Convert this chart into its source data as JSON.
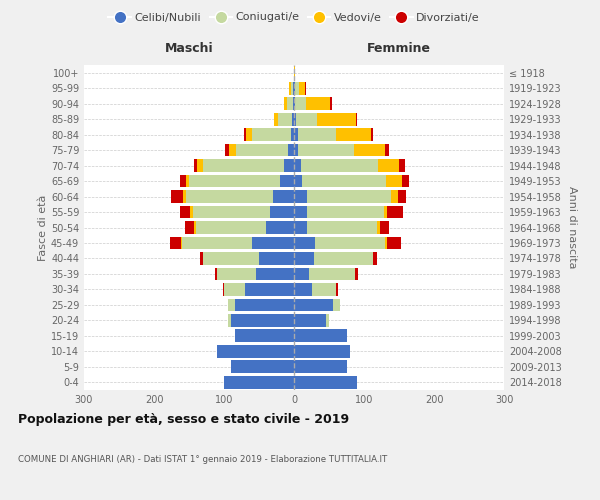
{
  "age_groups": [
    "0-4",
    "5-9",
    "10-14",
    "15-19",
    "20-24",
    "25-29",
    "30-34",
    "35-39",
    "40-44",
    "45-49",
    "50-54",
    "55-59",
    "60-64",
    "65-69",
    "70-74",
    "75-79",
    "80-84",
    "85-89",
    "90-94",
    "95-99",
    "100+"
  ],
  "birth_years": [
    "2014-2018",
    "2009-2013",
    "2004-2008",
    "1999-2003",
    "1994-1998",
    "1989-1993",
    "1984-1988",
    "1979-1983",
    "1974-1978",
    "1969-1973",
    "1964-1968",
    "1959-1963",
    "1954-1958",
    "1949-1953",
    "1944-1948",
    "1939-1943",
    "1934-1938",
    "1929-1933",
    "1924-1928",
    "1919-1923",
    "≤ 1918"
  ],
  "males": {
    "celibi": [
      100,
      90,
      110,
      85,
      90,
      85,
      70,
      55,
      50,
      60,
      40,
      35,
      30,
      20,
      15,
      8,
      5,
      3,
      2,
      2,
      0
    ],
    "coniugati": [
      0,
      0,
      0,
      0,
      5,
      10,
      30,
      55,
      80,
      100,
      100,
      110,
      125,
      130,
      115,
      75,
      55,
      20,
      8,
      3,
      0
    ],
    "vedovi": [
      0,
      0,
      0,
      0,
      0,
      0,
      0,
      0,
      0,
      2,
      3,
      3,
      3,
      5,
      8,
      10,
      8,
      5,
      5,
      2,
      0
    ],
    "divorziati": [
      0,
      0,
      0,
      0,
      0,
      0,
      2,
      3,
      5,
      15,
      12,
      15,
      18,
      8,
      5,
      5,
      3,
      0,
      0,
      0,
      0
    ]
  },
  "females": {
    "nubili": [
      90,
      75,
      80,
      75,
      45,
      55,
      25,
      22,
      28,
      30,
      18,
      18,
      18,
      12,
      10,
      5,
      5,
      3,
      2,
      2,
      0
    ],
    "coniugate": [
      0,
      0,
      0,
      0,
      5,
      10,
      35,
      65,
      85,
      100,
      100,
      110,
      120,
      120,
      110,
      80,
      55,
      30,
      15,
      5,
      0
    ],
    "vedove": [
      0,
      0,
      0,
      0,
      0,
      0,
      0,
      0,
      0,
      3,
      5,
      5,
      10,
      22,
      30,
      45,
      50,
      55,
      35,
      8,
      1
    ],
    "divorziate": [
      0,
      0,
      0,
      0,
      0,
      0,
      3,
      5,
      5,
      20,
      12,
      22,
      12,
      10,
      8,
      5,
      3,
      2,
      2,
      2,
      0
    ]
  },
  "colors": {
    "celibi_nubili": "#4472c4",
    "coniugati": "#c5d9a0",
    "vedovi": "#ffc000",
    "divorziati": "#cc0000"
  },
  "title": "Popolazione per età, sesso e stato civile - 2019",
  "subtitle": "COMUNE DI ANGHIARI (AR) - Dati ISTAT 1° gennaio 2019 - Elaborazione TUTTITALIA.IT",
  "xlabel_left": "Maschi",
  "xlabel_right": "Femmine",
  "ylabel_left": "Fasce di età",
  "ylabel_right": "Anni di nascita",
  "xlim": 300,
  "background_color": "#f0f0f0",
  "plot_background": "#ffffff",
  "legend_labels": [
    "Celibi/Nubili",
    "Coniugati/e",
    "Vedovi/e",
    "Divorziati/e"
  ]
}
